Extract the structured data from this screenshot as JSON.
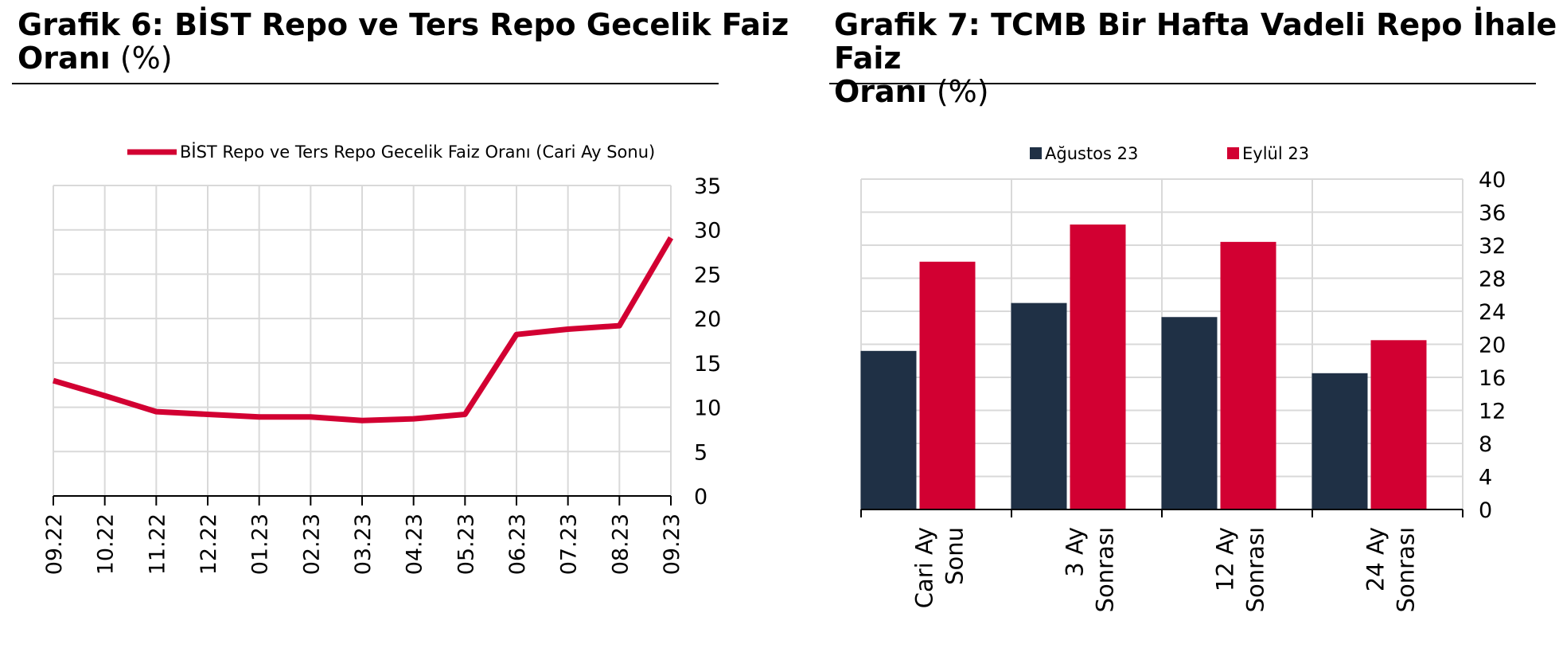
{
  "charts": [
    {
      "title_bold": "Grafik 6:  BİST Repo ve Ters Repo Gecelik Faiz",
      "title_bold2": "Oranı",
      "title_unit": " (%)"
    },
    {
      "title_bold": "Grafik 7: TCMB Bir Hafta Vadeli Repo İhale Faiz",
      "title_bold2": "Oranı",
      "title_unit": " (%)"
    }
  ],
  "colors": {
    "red": "#D20032",
    "navy": "#1F3045",
    "grid": "#D9D9D9"
  },
  "chart_data": [
    {
      "type": "line",
      "title": "Grafik 6:  BİST Repo ve Ters Repo Gecelik Faiz Oranı (%)",
      "categories": [
        "09.22",
        "10.22",
        "11.22",
        "12.22",
        "01.23",
        "02.23",
        "03.23",
        "04.23",
        "05.23",
        "06.23",
        "07.23",
        "08.23",
        "09.23"
      ],
      "series": [
        {
          "name": "BİST Repo ve Ters Repo Gecelik Faiz Oranı (Cari Ay Sonu)",
          "values": [
            13.0,
            11.3,
            9.5,
            9.2,
            8.9,
            8.9,
            8.5,
            8.7,
            9.2,
            18.2,
            18.8,
            19.2,
            29.1
          ]
        }
      ],
      "ylim": [
        0,
        35
      ],
      "yticks": [
        "0",
        "5",
        "10",
        "15",
        "20",
        "25",
        "30",
        "35"
      ],
      "grid": true,
      "legend": "top-center"
    },
    {
      "type": "bar",
      "title": "Grafik 7: TCMB Bir Hafta Vadeli Repo İhale Faiz Oranı (%)",
      "categories": [
        [
          "Cari Ay",
          "Sonu"
        ],
        [
          "3 Ay",
          "Sonrası"
        ],
        [
          "12 Ay",
          "Sonrası"
        ],
        [
          "24 Ay",
          "Sonrası"
        ]
      ],
      "series": [
        {
          "name": "Ağustos 23",
          "values": [
            19.2,
            25.0,
            23.3,
            16.5
          ]
        },
        {
          "name": "Eylül 23",
          "values": [
            30.0,
            34.5,
            32.4,
            20.5
          ]
        }
      ],
      "ylim": [
        0,
        40
      ],
      "yticks": [
        "0",
        "4",
        "8",
        "12",
        "16",
        "20",
        "24",
        "28",
        "32",
        "36",
        "40"
      ],
      "grid": true,
      "legend": "top-center"
    }
  ]
}
